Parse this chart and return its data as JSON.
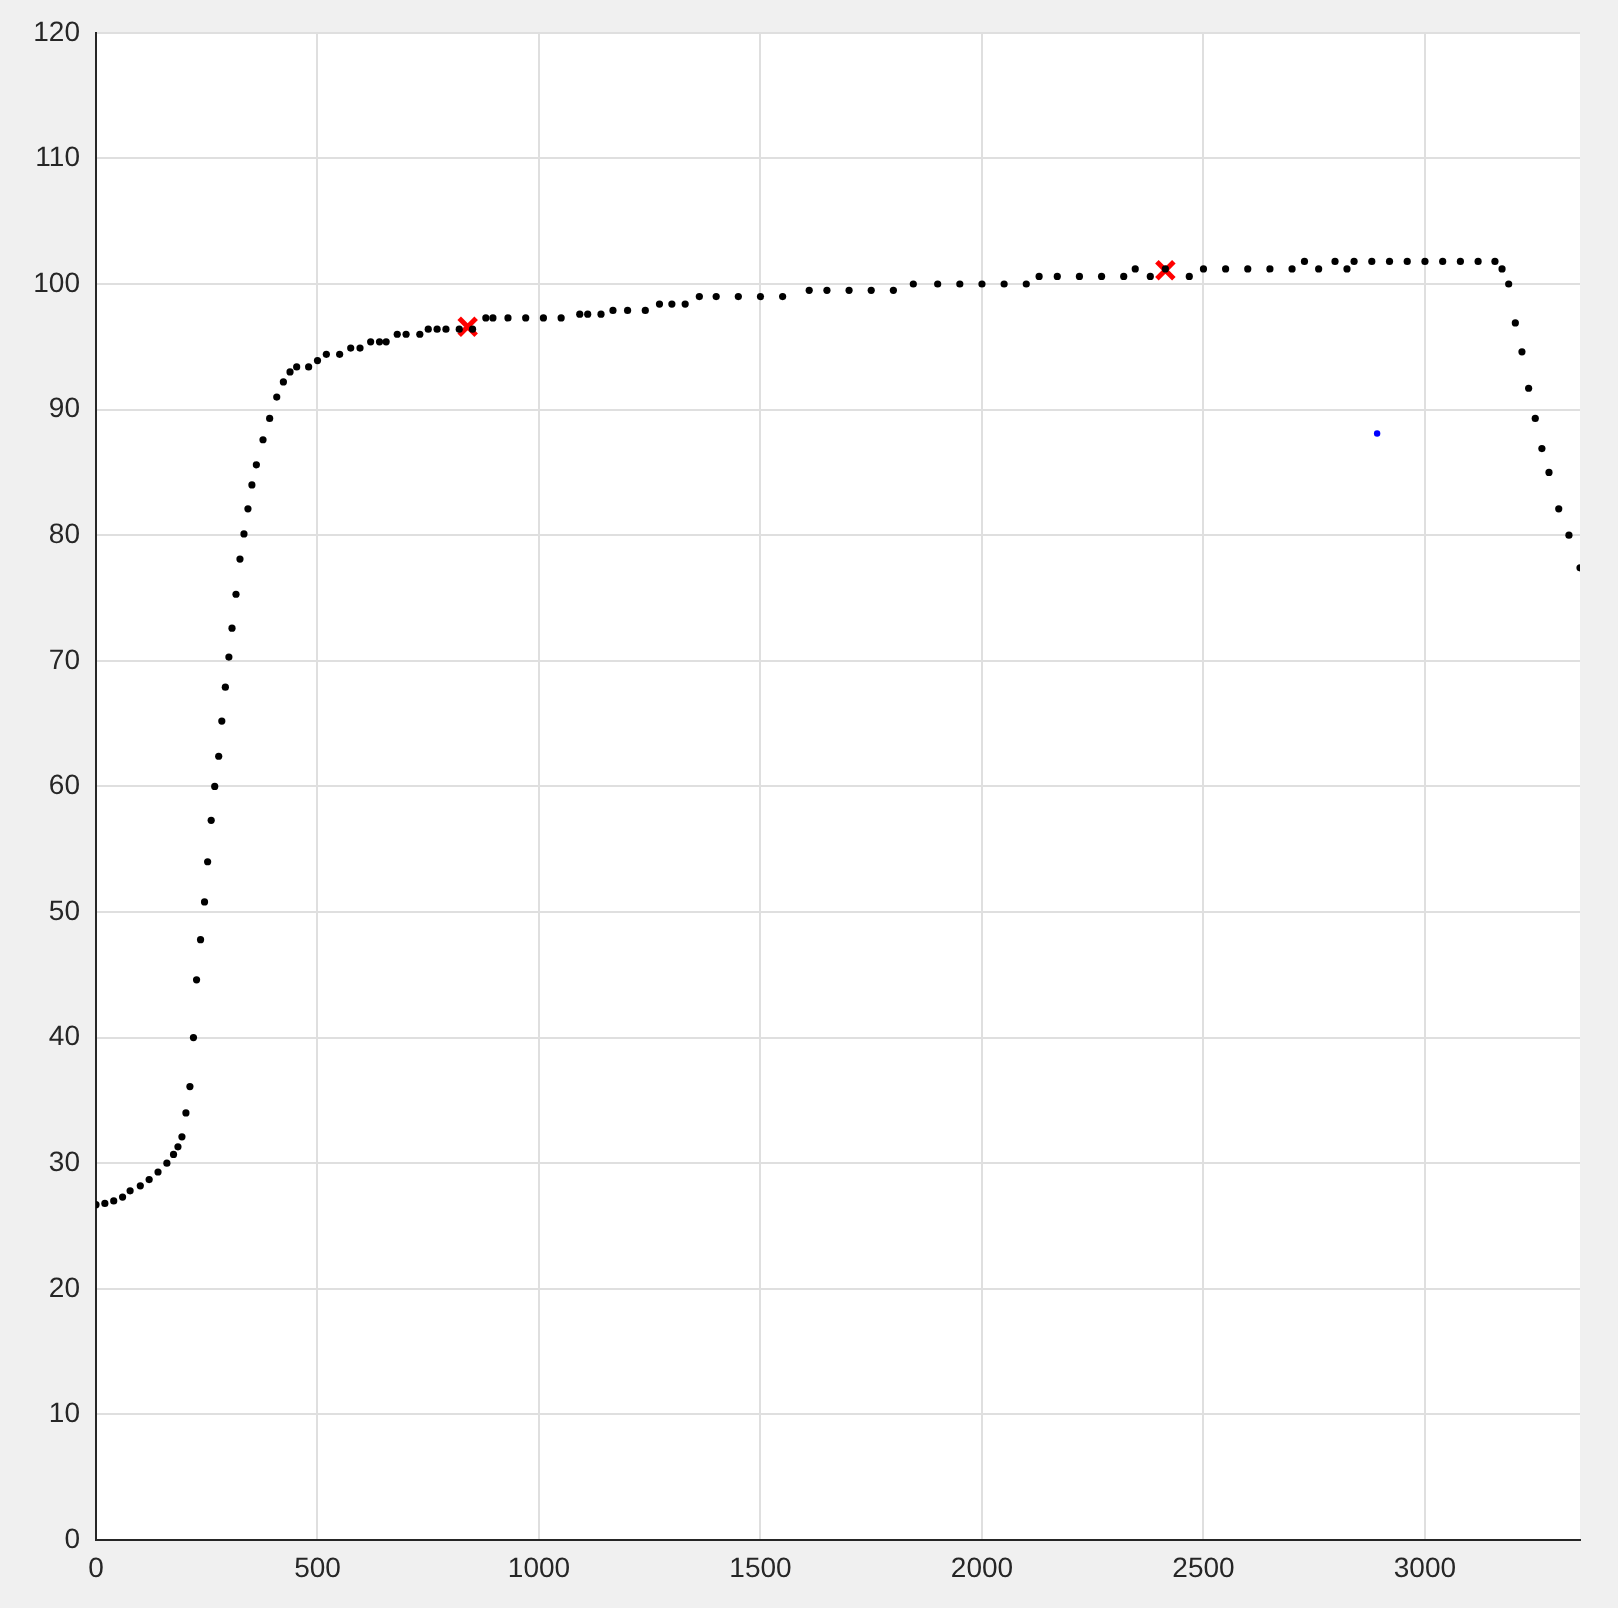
{
  "chart_data": {
    "type": "scatter",
    "xlim": [
      0,
      3350
    ],
    "ylim": [
      0,
      120
    ],
    "xticks": [
      0,
      500,
      1000,
      1500,
      2000,
      2500,
      3000
    ],
    "yticks": [
      0,
      10,
      20,
      30,
      40,
      50,
      60,
      70,
      80,
      90,
      100,
      110,
      120
    ],
    "grid": true,
    "legend": false,
    "marker": "circle",
    "series": [
      {
        "color": "#000000",
        "x": [
          0,
          20,
          40,
          60,
          77,
          100,
          120,
          140,
          160,
          175,
          185,
          194,
          203,
          212,
          220,
          227,
          236,
          245,
          252,
          260,
          268,
          277,
          284,
          292,
          300,
          307,
          316,
          325,
          334,
          343,
          352,
          362,
          377,
          392,
          408,
          423,
          438,
          453,
          480,
          500,
          520,
          550,
          575,
          596,
          620,
          640,
          655,
          680,
          700,
          731,
          750,
          770,
          790,
          820,
          850,
          880,
          896,
          930,
          970,
          1010,
          1050,
          1092,
          1110,
          1140,
          1167,
          1200,
          1240,
          1272,
          1300,
          1330,
          1362,
          1400,
          1450,
          1500,
          1550,
          1610,
          1650,
          1700,
          1750,
          1800,
          1845,
          1900,
          1950,
          2000,
          2050,
          2100,
          2129,
          2170,
          2220,
          2270,
          2320,
          2346,
          2380,
          2414,
          2468,
          2500,
          2550,
          2600,
          2650,
          2700,
          2728,
          2760,
          2797,
          2824,
          2840,
          2880,
          2920,
          2960,
          3000,
          3040,
          3080,
          3120,
          3158,
          3174,
          3189,
          3204,
          3219,
          3234,
          3249,
          3264,
          3280,
          3302,
          3325,
          3350
        ],
        "values": [
          26.7,
          26.8,
          27.0,
          27.3,
          27.8,
          28.2,
          28.7,
          29.3,
          30.0,
          30.7,
          31.3,
          32.1,
          34.0,
          36.1,
          40.0,
          44.6,
          47.8,
          50.8,
          54.0,
          57.3,
          60.0,
          62.4,
          65.2,
          67.9,
          70.3,
          72.6,
          75.3,
          78.1,
          80.1,
          82.1,
          84.0,
          85.6,
          87.6,
          89.3,
          91.0,
          92.2,
          93.0,
          93.4,
          93.4,
          93.9,
          94.4,
          94.4,
          94.9,
          94.9,
          95.4,
          95.4,
          95.4,
          96.0,
          96.0,
          96.0,
          96.4,
          96.4,
          96.4,
          96.4,
          96.4,
          97.3,
          97.3,
          97.3,
          97.3,
          97.3,
          97.3,
          97.6,
          97.6,
          97.6,
          97.9,
          97.9,
          97.9,
          98.4,
          98.4,
          98.4,
          99.0,
          99.0,
          99.0,
          99.0,
          99.0,
          99.5,
          99.5,
          99.5,
          99.5,
          99.5,
          100.0,
          100.0,
          100.0,
          100.0,
          100.0,
          100.0,
          100.6,
          100.6,
          100.6,
          100.6,
          100.6,
          101.2,
          100.6,
          101.2,
          100.6,
          101.2,
          101.2,
          101.2,
          101.2,
          101.2,
          101.8,
          101.2,
          101.8,
          101.2,
          101.8,
          101.8,
          101.8,
          101.8,
          101.8,
          101.8,
          101.8,
          101.8,
          101.8,
          101.2,
          100.0,
          96.9,
          94.6,
          91.7,
          89.3,
          86.9,
          85.0,
          82.1,
          80.0,
          77.4
        ]
      },
      {
        "color": "#ff0000",
        "marker": "cross",
        "x": [
          839,
          2414
        ],
        "values": [
          96.6,
          101.1
        ]
      },
      {
        "color": "#0000ff",
        "x": [
          2892
        ],
        "values": [
          88.1
        ]
      }
    ]
  }
}
